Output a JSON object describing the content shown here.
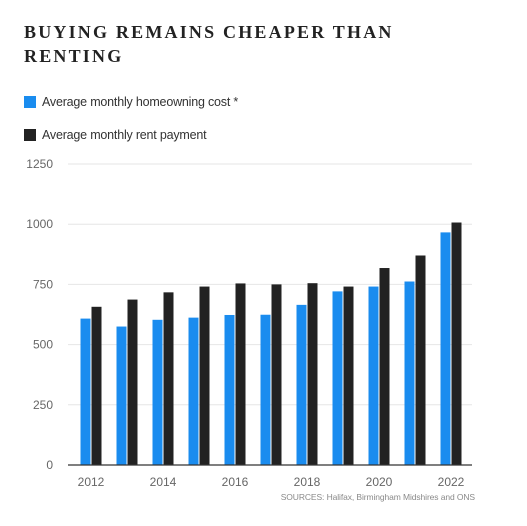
{
  "title": "BUYING REMAINS CHEAPER THAN RENTING",
  "source": "SOURCES: Halifax, Birmingham Midshires and ONS",
  "colors": {
    "homeowning": "#1a8cef",
    "rent": "#222222",
    "grid": "#e6e6e6",
    "baseline": "#333333"
  },
  "chart_data": {
    "type": "bar",
    "title": "BUYING REMAINS CHEAPER THAN RENTING",
    "xlabel": "",
    "ylabel": "",
    "categories": [
      "2012",
      "2013",
      "2014",
      "2015",
      "2016",
      "2017",
      "2018",
      "2019",
      "2020",
      "2021",
      "2022"
    ],
    "x_tick_labels": [
      "2012",
      "2014",
      "2016",
      "2018",
      "2020",
      "2022"
    ],
    "y_ticks": [
      "0",
      "250",
      "500",
      "750",
      "1000",
      "1250"
    ],
    "ylim": [
      0,
      1250
    ],
    "grid": true,
    "legend_position": "top-left",
    "series": [
      {
        "name": "Average monthly homeowning cost *",
        "color": "#1a8cef",
        "values": [
          608,
          575,
          603,
          612,
          623,
          624,
          665,
          721,
          741,
          762,
          966
        ]
      },
      {
        "name": "Average monthly rent payment",
        "color": "#222222",
        "values": [
          657,
          687,
          717,
          741,
          754,
          750,
          755,
          741,
          818,
          870,
          1007
        ]
      }
    ]
  }
}
